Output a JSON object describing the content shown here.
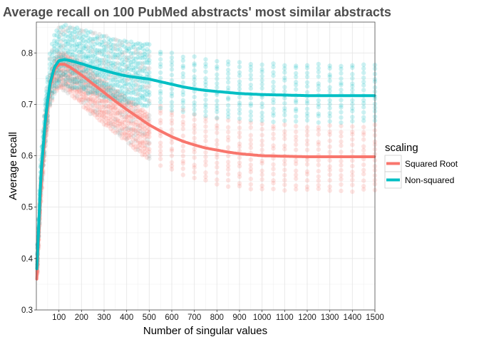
{
  "chart_data": {
    "type": "scatter",
    "title": "Average recall on 100 PubMed abstracts' most similar abstracts",
    "xlabel": "Number of singular values",
    "ylabel": "Average recall",
    "xlim": [
      0,
      1500
    ],
    "ylim": [
      0.3,
      0.86
    ],
    "x_ticks": [
      100,
      200,
      300,
      400,
      500,
      600,
      700,
      800,
      900,
      1000,
      1100,
      1200,
      1300,
      1400,
      1500
    ],
    "x_tick_labels": [
      "100",
      "200",
      "300",
      "400",
      "500",
      "600",
      "700",
      "800",
      "900",
      "1000",
      "1100",
      "1200",
      "1300",
      "1400",
      "1500"
    ],
    "y_ticks": [
      0.3,
      0.4,
      0.5,
      0.6,
      0.7,
      0.8
    ],
    "y_tick_labels": [
      "0.3",
      "0.4",
      "0.5",
      "0.6",
      "0.7",
      "0.8"
    ],
    "grid": true,
    "legend": {
      "title": "scaling",
      "position": "right",
      "entries": [
        {
          "label": "Squared Root",
          "color": "#F8766D"
        },
        {
          "label": "Non-squared",
          "color": "#00BFC4"
        }
      ]
    },
    "series": [
      {
        "name": "Squared Root",
        "color": "#F8766D",
        "x": [
          2,
          10,
          20,
          40,
          60,
          80,
          100,
          125,
          150,
          200,
          250,
          300,
          350,
          400,
          450,
          500,
          550,
          600,
          650,
          700,
          750,
          800,
          850,
          900,
          950,
          1000,
          1100,
          1200,
          1300,
          1400,
          1500
        ],
        "y": [
          0.36,
          0.44,
          0.54,
          0.66,
          0.735,
          0.768,
          0.778,
          0.778,
          0.772,
          0.757,
          0.74,
          0.723,
          0.706,
          0.69,
          0.675,
          0.66,
          0.648,
          0.637,
          0.628,
          0.621,
          0.615,
          0.611,
          0.607,
          0.604,
          0.602,
          0.6,
          0.599,
          0.598,
          0.598,
          0.598,
          0.598
        ],
        "spread_below": [
          0.02,
          0.02,
          0.03,
          0.04,
          0.04,
          0.045,
          0.045,
          0.05,
          0.05,
          0.055,
          0.06,
          0.06,
          0.06,
          0.06,
          0.065,
          0.065,
          0.065,
          0.065,
          0.065,
          0.065,
          0.065,
          0.065,
          0.065,
          0.065,
          0.065,
          0.065,
          0.065,
          0.065,
          0.065,
          0.065,
          0.065
        ],
        "spread_above": [
          0.01,
          0.02,
          0.02,
          0.02,
          0.02,
          0.02,
          0.02,
          0.02,
          0.02,
          0.02,
          0.02,
          0.02,
          0.02,
          0.02,
          0.02,
          0.02,
          0.05,
          0.05,
          0.06,
          0.06,
          0.06,
          0.06,
          0.06,
          0.06,
          0.06,
          0.06,
          0.06,
          0.06,
          0.06,
          0.06,
          0.06
        ]
      },
      {
        "name": "Non-squared",
        "color": "#00BFC4",
        "x": [
          2,
          10,
          20,
          40,
          60,
          80,
          100,
          125,
          150,
          200,
          250,
          300,
          350,
          400,
          450,
          500,
          550,
          600,
          650,
          700,
          750,
          800,
          850,
          900,
          950,
          1000,
          1100,
          1200,
          1300,
          1400,
          1500
        ],
        "y": [
          0.38,
          0.46,
          0.56,
          0.67,
          0.74,
          0.772,
          0.785,
          0.787,
          0.785,
          0.779,
          0.772,
          0.766,
          0.76,
          0.755,
          0.752,
          0.749,
          0.744,
          0.739,
          0.734,
          0.73,
          0.727,
          0.725,
          0.723,
          0.721,
          0.72,
          0.719,
          0.718,
          0.717,
          0.717,
          0.717,
          0.717
        ],
        "spread_below": [
          0.02,
          0.02,
          0.03,
          0.04,
          0.04,
          0.045,
          0.045,
          0.05,
          0.05,
          0.05,
          0.05,
          0.05,
          0.05,
          0.05,
          0.05,
          0.05,
          0.05,
          0.05,
          0.05,
          0.05,
          0.05,
          0.05,
          0.05,
          0.05,
          0.05,
          0.05,
          0.05,
          0.05,
          0.05,
          0.05,
          0.05
        ],
        "spread_above": [
          0.02,
          0.02,
          0.03,
          0.04,
          0.06,
          0.06,
          0.065,
          0.065,
          0.065,
          0.065,
          0.065,
          0.065,
          0.065,
          0.065,
          0.065,
          0.065,
          0.06,
          0.06,
          0.06,
          0.06,
          0.06,
          0.06,
          0.06,
          0.06,
          0.06,
          0.06,
          0.06,
          0.06,
          0.06,
          0.06,
          0.06
        ]
      }
    ],
    "overlap_point_color": "#9a9a9a",
    "point_step_low_x": 5,
    "point_step_high_x": 50,
    "points_per_x": 14
  }
}
